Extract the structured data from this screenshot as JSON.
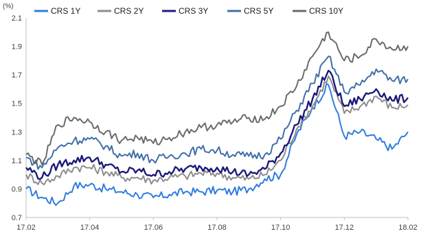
{
  "chart_data": {
    "type": "line",
    "unit_label": "(%)",
    "ylim": [
      0.7,
      2.1
    ],
    "y_ticks": [
      0.7,
      0.9,
      1.1,
      1.3,
      1.5,
      1.7,
      1.9,
      2.1
    ],
    "x_ticks": [
      "17.02",
      "17.04",
      "17.06",
      "17.08",
      "17.10",
      "17.12",
      "18.02"
    ],
    "grid": false,
    "legend_position": "top",
    "series": [
      {
        "name": "CRS 1Y",
        "color": "#2e7be0",
        "points": [
          [
            "17.02",
            0.9
          ],
          [
            "17.025",
            0.84
          ],
          [
            "17.03",
            0.8
          ],
          [
            "17.035",
            0.92
          ],
          [
            "17.04",
            0.93
          ],
          [
            "17.045",
            0.9
          ],
          [
            "17.05",
            0.88
          ],
          [
            "17.055",
            0.86
          ],
          [
            "17.06",
            0.84
          ],
          [
            "17.065",
            0.86
          ],
          [
            "17.07",
            0.88
          ],
          [
            "17.075",
            0.88
          ],
          [
            "17.08",
            0.89
          ],
          [
            "17.085",
            0.88
          ],
          [
            "17.09",
            0.9
          ],
          [
            "17.095",
            0.97
          ],
          [
            "17.10",
            1.0
          ],
          [
            "17.105",
            1.28
          ],
          [
            "17.11",
            1.47
          ],
          [
            "17.115",
            1.63
          ],
          [
            "17.12",
            1.27
          ],
          [
            "17.125",
            1.3
          ],
          [
            "18.01",
            1.25
          ],
          [
            "18.015",
            1.18
          ],
          [
            "18.02",
            1.3
          ]
        ]
      },
      {
        "name": "CRS 2Y",
        "color": "#8c8c8c",
        "points": [
          [
            "17.02",
            1.0
          ],
          [
            "17.025",
            0.94
          ],
          [
            "17.03",
            0.99
          ],
          [
            "17.035",
            1.05
          ],
          [
            "17.04",
            1.05
          ],
          [
            "17.045",
            1.02
          ],
          [
            "17.05",
            0.98
          ],
          [
            "17.055",
            0.98
          ],
          [
            "17.06",
            0.96
          ],
          [
            "17.065",
            0.98
          ],
          [
            "17.07",
            0.99
          ],
          [
            "17.075",
            1.01
          ],
          [
            "17.08",
            1.01
          ],
          [
            "17.085",
            0.98
          ],
          [
            "17.09",
            0.97
          ],
          [
            "17.095",
            1.0
          ],
          [
            "17.10",
            1.1
          ],
          [
            "17.105",
            1.32
          ],
          [
            "17.11",
            1.48
          ],
          [
            "17.115",
            1.69
          ],
          [
            "17.12",
            1.43
          ],
          [
            "17.125",
            1.48
          ],
          [
            "18.01",
            1.55
          ],
          [
            "18.015",
            1.47
          ],
          [
            "18.02",
            1.49
          ]
        ]
      },
      {
        "name": "CRS 3Y",
        "color": "#1c1a7a",
        "points": [
          [
            "17.02",
            1.05
          ],
          [
            "17.025",
            0.98
          ],
          [
            "17.03",
            1.07
          ],
          [
            "17.035",
            1.1
          ],
          [
            "17.04",
            1.12
          ],
          [
            "17.045",
            1.07
          ],
          [
            "17.05",
            1.02
          ],
          [
            "17.055",
            1.03
          ],
          [
            "17.06",
            1.0
          ],
          [
            "17.065",
            1.02
          ],
          [
            "17.07",
            1.04
          ],
          [
            "17.075",
            1.05
          ],
          [
            "17.08",
            1.05
          ],
          [
            "17.085",
            1.02
          ],
          [
            "17.09",
            1.0
          ],
          [
            "17.095",
            1.04
          ],
          [
            "17.10",
            1.15
          ],
          [
            "17.105",
            1.35
          ],
          [
            "17.11",
            1.53
          ],
          [
            "17.115",
            1.73
          ],
          [
            "17.12",
            1.48
          ],
          [
            "17.125",
            1.53
          ],
          [
            "18.01",
            1.6
          ],
          [
            "18.015",
            1.52
          ],
          [
            "18.02",
            1.54
          ]
        ]
      },
      {
        "name": "CRS 5Y",
        "color": "#3f6ea8",
        "points": [
          [
            "17.02",
            1.12
          ],
          [
            "17.025",
            1.05
          ],
          [
            "17.03",
            1.19
          ],
          [
            "17.035",
            1.24
          ],
          [
            "17.04",
            1.25
          ],
          [
            "17.045",
            1.2
          ],
          [
            "17.05",
            1.13
          ],
          [
            "17.055",
            1.15
          ],
          [
            "17.06",
            1.1
          ],
          [
            "17.065",
            1.13
          ],
          [
            "17.07",
            1.15
          ],
          [
            "17.075",
            1.18
          ],
          [
            "17.08",
            1.17
          ],
          [
            "17.085",
            1.14
          ],
          [
            "17.09",
            1.13
          ],
          [
            "17.095",
            1.14
          ],
          [
            "17.10",
            1.25
          ],
          [
            "17.105",
            1.45
          ],
          [
            "17.11",
            1.64
          ],
          [
            "17.115",
            1.83
          ],
          [
            "17.12",
            1.58
          ],
          [
            "17.125",
            1.63
          ],
          [
            "18.01",
            1.74
          ],
          [
            "18.015",
            1.66
          ],
          [
            "18.02",
            1.67
          ]
        ]
      },
      {
        "name": "CRS 10Y",
        "color": "#6a6a6a",
        "points": [
          [
            "17.02",
            1.14
          ],
          [
            "17.025",
            1.07
          ],
          [
            "17.03",
            1.35
          ],
          [
            "17.035",
            1.4
          ],
          [
            "17.04",
            1.37
          ],
          [
            "17.045",
            1.3
          ],
          [
            "17.05",
            1.24
          ],
          [
            "17.055",
            1.26
          ],
          [
            "17.06",
            1.22
          ],
          [
            "17.065",
            1.26
          ],
          [
            "17.07",
            1.3
          ],
          [
            "17.075",
            1.33
          ],
          [
            "17.08",
            1.35
          ],
          [
            "17.085",
            1.37
          ],
          [
            "17.09",
            1.4
          ],
          [
            "17.095",
            1.39
          ],
          [
            "17.10",
            1.48
          ],
          [
            "17.105",
            1.62
          ],
          [
            "17.11",
            1.83
          ],
          [
            "17.115",
            2.0
          ],
          [
            "17.12",
            1.8
          ],
          [
            "17.125",
            1.83
          ],
          [
            "18.01",
            1.95
          ],
          [
            "18.015",
            1.88
          ],
          [
            "18.02",
            1.9
          ]
        ]
      }
    ]
  }
}
